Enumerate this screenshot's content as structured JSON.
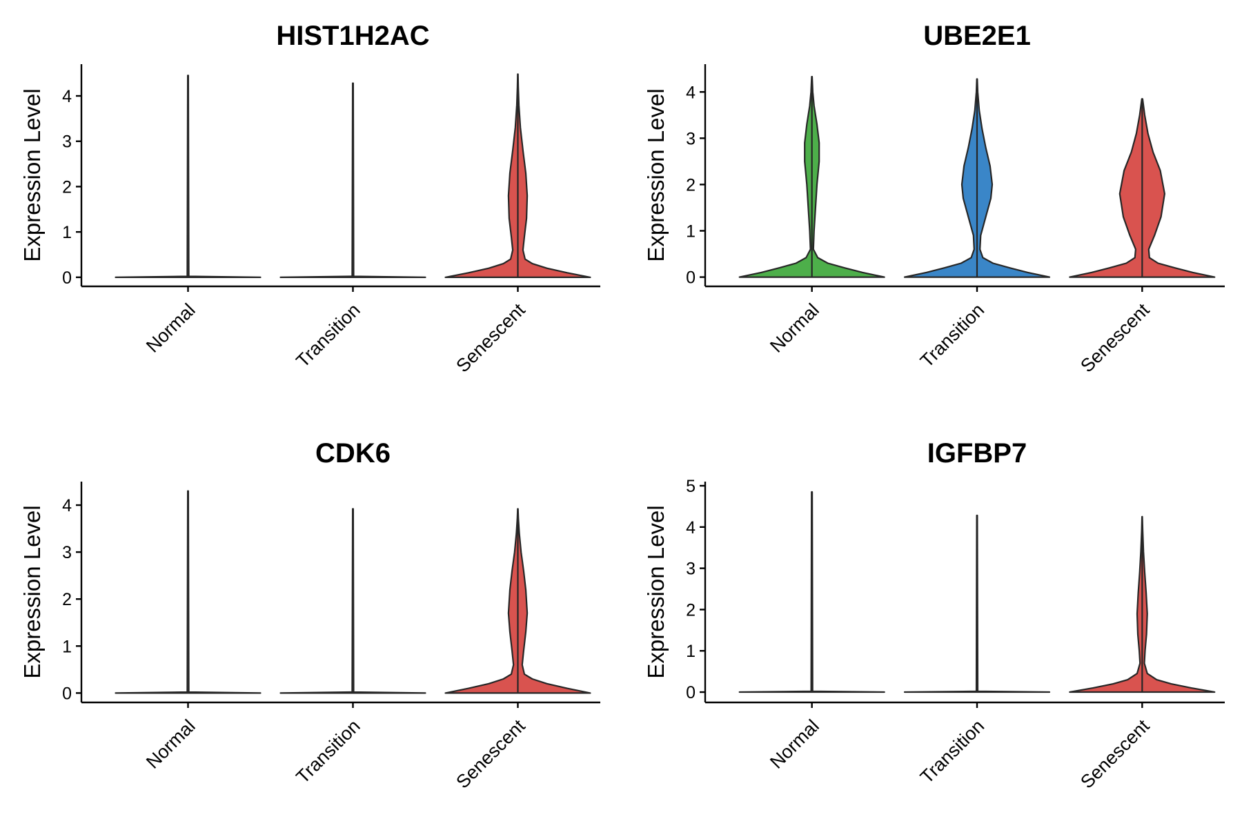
{
  "chart_data": [
    {
      "type": "violin",
      "title": "HIST1H2AC",
      "ylabel": "Expression Level",
      "xlabel": "",
      "categories": [
        "Normal",
        "Transition",
        "Senescent"
      ],
      "ylim": [
        -0.2,
        4.7
      ],
      "yticks": [
        0,
        1,
        2,
        3,
        4
      ],
      "grid": false,
      "colors": {
        "Normal": "#4DAF4A",
        "Transition": "#3A86C8",
        "Senescent": "#D9534F"
      },
      "series": [
        {
          "category": "Normal",
          "max": 4.45,
          "profile": [
            [
              0,
              1.0
            ],
            [
              0.02,
              0.01
            ],
            [
              4.45,
              0.004
            ]
          ]
        },
        {
          "category": "Transition",
          "max": 4.28,
          "profile": [
            [
              0,
              1.0
            ],
            [
              0.02,
              0.01
            ],
            [
              4.28,
              0.004
            ]
          ]
        },
        {
          "category": "Senescent",
          "max": 4.48,
          "profile": [
            [
              0,
              1.0
            ],
            [
              0.1,
              0.68
            ],
            [
              0.2,
              0.4
            ],
            [
              0.3,
              0.2
            ],
            [
              0.4,
              0.1
            ],
            [
              0.6,
              0.07
            ],
            [
              0.9,
              0.09
            ],
            [
              1.3,
              0.12
            ],
            [
              1.8,
              0.13
            ],
            [
              2.3,
              0.11
            ],
            [
              2.8,
              0.07
            ],
            [
              3.3,
              0.035
            ],
            [
              3.8,
              0.014
            ],
            [
              4.2,
              0.006
            ],
            [
              4.48,
              0.002
            ]
          ]
        }
      ]
    },
    {
      "type": "violin",
      "title": "UBE2E1",
      "ylabel": "Expression Level",
      "xlabel": "",
      "categories": [
        "Normal",
        "Transition",
        "Senescent"
      ],
      "ylim": [
        -0.2,
        4.6
      ],
      "yticks": [
        0,
        1,
        2,
        3,
        4
      ],
      "grid": false,
      "colors": {
        "Normal": "#4DAF4A",
        "Transition": "#3A86C8",
        "Senescent": "#D9534F"
      },
      "series": [
        {
          "category": "Normal",
          "max": 4.33,
          "profile": [
            [
              0,
              1.0
            ],
            [
              0.1,
              0.7
            ],
            [
              0.2,
              0.45
            ],
            [
              0.3,
              0.22
            ],
            [
              0.42,
              0.08
            ],
            [
              0.6,
              0.02
            ],
            [
              1.0,
              0.03
            ],
            [
              1.5,
              0.05
            ],
            [
              2.0,
              0.07
            ],
            [
              2.5,
              0.1
            ],
            [
              2.9,
              0.1
            ],
            [
              3.3,
              0.07
            ],
            [
              3.7,
              0.03
            ],
            [
              4.0,
              0.012
            ],
            [
              4.33,
              0.003
            ]
          ]
        },
        {
          "category": "Transition",
          "max": 4.28,
          "profile": [
            [
              0,
              1.0
            ],
            [
              0.1,
              0.7
            ],
            [
              0.2,
              0.45
            ],
            [
              0.3,
              0.22
            ],
            [
              0.42,
              0.08
            ],
            [
              0.6,
              0.04
            ],
            [
              0.9,
              0.05
            ],
            [
              1.3,
              0.12
            ],
            [
              1.7,
              0.19
            ],
            [
              2.0,
              0.21
            ],
            [
              2.4,
              0.18
            ],
            [
              2.8,
              0.12
            ],
            [
              3.2,
              0.07
            ],
            [
              3.6,
              0.03
            ],
            [
              4.0,
              0.01
            ],
            [
              4.28,
              0.003
            ]
          ]
        },
        {
          "category": "Senescent",
          "max": 3.85,
          "profile": [
            [
              0,
              1.0
            ],
            [
              0.1,
              0.7
            ],
            [
              0.2,
              0.45
            ],
            [
              0.3,
              0.22
            ],
            [
              0.42,
              0.1
            ],
            [
              0.6,
              0.09
            ],
            [
              0.9,
              0.17
            ],
            [
              1.3,
              0.26
            ],
            [
              1.8,
              0.31
            ],
            [
              2.3,
              0.25
            ],
            [
              2.7,
              0.15
            ],
            [
              3.1,
              0.08
            ],
            [
              3.5,
              0.035
            ],
            [
              3.85,
              0.005
            ]
          ]
        }
      ]
    },
    {
      "type": "violin",
      "title": "CDK6",
      "ylabel": "Expression Level",
      "xlabel": "",
      "categories": [
        "Normal",
        "Transition",
        "Senescent"
      ],
      "ylim": [
        -0.2,
        4.5
      ],
      "yticks": [
        0,
        1,
        2,
        3,
        4
      ],
      "grid": false,
      "colors": {
        "Normal": "#4DAF4A",
        "Transition": "#3A86C8",
        "Senescent": "#D9534F"
      },
      "series": [
        {
          "category": "Normal",
          "max": 4.3,
          "profile": [
            [
              0,
              1.0
            ],
            [
              0.02,
              0.01
            ],
            [
              4.3,
              0.004
            ]
          ]
        },
        {
          "category": "Transition",
          "max": 3.92,
          "profile": [
            [
              0,
              1.0
            ],
            [
              0.02,
              0.01
            ],
            [
              3.92,
              0.004
            ]
          ]
        },
        {
          "category": "Senescent",
          "max": 3.92,
          "profile": [
            [
              0,
              1.0
            ],
            [
              0.1,
              0.68
            ],
            [
              0.2,
              0.4
            ],
            [
              0.3,
              0.2
            ],
            [
              0.4,
              0.09
            ],
            [
              0.6,
              0.06
            ],
            [
              0.9,
              0.08
            ],
            [
              1.3,
              0.11
            ],
            [
              1.7,
              0.13
            ],
            [
              2.2,
              0.11
            ],
            [
              2.6,
              0.08
            ],
            [
              3.0,
              0.045
            ],
            [
              3.4,
              0.02
            ],
            [
              3.7,
              0.008
            ],
            [
              3.92,
              0.002
            ]
          ]
        }
      ]
    },
    {
      "type": "violin",
      "title": "IGFBP7",
      "ylabel": "Expression Level",
      "xlabel": "",
      "categories": [
        "Normal",
        "Transition",
        "Senescent"
      ],
      "ylim": [
        -0.25,
        5.1
      ],
      "yticks": [
        0,
        1,
        2,
        3,
        4,
        5
      ],
      "grid": false,
      "colors": {
        "Normal": "#4DAF4A",
        "Transition": "#3A86C8",
        "Senescent": "#D9534F"
      },
      "series": [
        {
          "category": "Normal",
          "max": 4.85,
          "profile": [
            [
              0,
              1.0
            ],
            [
              0.02,
              0.01
            ],
            [
              4.85,
              0.004
            ]
          ]
        },
        {
          "category": "Transition",
          "max": 4.28,
          "profile": [
            [
              0,
              1.0
            ],
            [
              0.02,
              0.01
            ],
            [
              4.28,
              0.004
            ]
          ]
        },
        {
          "category": "Senescent",
          "max": 4.25,
          "profile": [
            [
              0,
              1.0
            ],
            [
              0.1,
              0.68
            ],
            [
              0.2,
              0.4
            ],
            [
              0.3,
              0.2
            ],
            [
              0.45,
              0.07
            ],
            [
              0.7,
              0.03
            ],
            [
              1.0,
              0.04
            ],
            [
              1.4,
              0.06
            ],
            [
              1.9,
              0.07
            ],
            [
              2.4,
              0.055
            ],
            [
              2.9,
              0.035
            ],
            [
              3.4,
              0.018
            ],
            [
              3.9,
              0.007
            ],
            [
              4.25,
              0.002
            ]
          ]
        }
      ]
    }
  ]
}
